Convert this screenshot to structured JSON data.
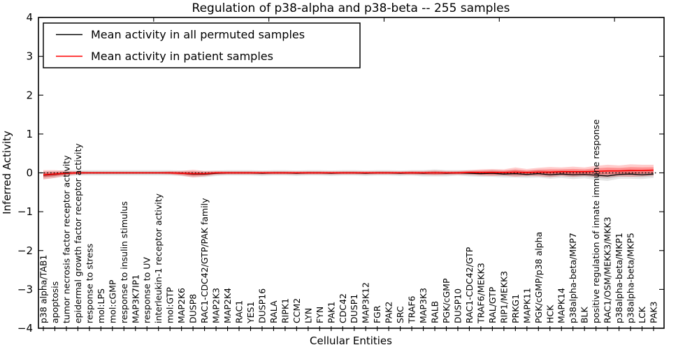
{
  "figure": {
    "title": "Regulation of p38-alpha and p38-beta -- 255 samples"
  },
  "chart_data": {
    "type": "line",
    "title": "Regulation of p38-alpha and p38-beta -- 255 samples",
    "xlabel": "Cellular Entities",
    "ylabel": "Inferred Activity",
    "ylim": [
      -4,
      4
    ],
    "yticks": [
      4,
      3,
      2,
      1,
      0,
      -1,
      -2,
      -3,
      -4
    ],
    "grid": false,
    "legend": {
      "position": "upper left",
      "entries": [
        {
          "label": "Mean activity in all permuted samples",
          "color": "#000000"
        },
        {
          "label": "Mean activity in patient samples",
          "color": "#ff0000"
        }
      ]
    },
    "reference_line": {
      "y": 0,
      "style": "dotted",
      "color": "#000000"
    },
    "categories": [
      "p38 alpha/TAB1",
      "apoptosis",
      "tumor necrosis factor receptor activity",
      "epidermal growth factor receptor activity",
      "response to stress",
      "mol:LPS",
      "mol:cGMP",
      "response to insulin stimulus",
      "MAP3K7IP1",
      "response to UV",
      "interleukin-1 receptor activity",
      "mol:GTP",
      "MAP2K6",
      "DUSP8",
      "RAC1-CDC42/GTP/PAK family",
      "MAP2K3",
      "MAP2K4",
      "RAC1",
      "YES1",
      "DUSP16",
      "RALA",
      "RIPK1",
      "CCM2",
      "LYN",
      "FYN",
      "PAK1",
      "CDC42",
      "DUSP1",
      "MAP3K12",
      "FGR",
      "PAK2",
      "SRC",
      "TRAF6",
      "MAP3K3",
      "RALB",
      "PGK/cGMP",
      "DUSP10",
      "RAC1-CDC42/GTP",
      "TRAF6/MEKK3",
      "RAL/GTP",
      "RIP1/MEKK3",
      "PRKG1",
      "MAPK11",
      "PGK/cGMP/p38 alpha",
      "HCK",
      "MAPK14",
      "p38alpha-beta/MKP7",
      "BLK",
      "positive regulation of innate immune response",
      "RAC1/OSM/MEKK3/MKK3",
      "p38alpha-beta/MKP1",
      "p38alpha-beta/MKP5",
      "LCK",
      "PAK3"
    ],
    "series": [
      {
        "name": "Mean activity in all permuted samples",
        "color": "#000000",
        "values": [
          -0.06,
          -0.04,
          -0.01,
          0,
          0,
          0,
          0,
          0,
          0,
          0,
          0,
          0,
          -0.01,
          -0.03,
          -0.03,
          -0.01,
          0,
          0,
          0,
          -0.01,
          0,
          0,
          -0.01,
          0,
          0,
          -0.01,
          0,
          0,
          -0.01,
          0,
          0,
          -0.01,
          0,
          -0.01,
          0,
          -0.01,
          0,
          -0.01,
          -0.02,
          -0.01,
          -0.03,
          -0.02,
          -0.04,
          -0.02,
          -0.05,
          -0.03,
          -0.05,
          -0.04,
          -0.06,
          -0.08,
          -0.04,
          -0.03,
          -0.05,
          -0.03
        ]
      },
      {
        "name": "Mean activity in patient samples",
        "color": "#ff0000",
        "values": [
          -0.05,
          -0.03,
          -0.01,
          0,
          0,
          0,
          0,
          0,
          0,
          0,
          0,
          0,
          -0.01,
          -0.02,
          -0.02,
          0,
          0,
          0,
          0,
          0,
          0,
          0,
          0,
          0,
          0,
          0,
          0,
          0,
          0,
          0,
          0,
          0,
          0,
          0,
          0,
          0,
          0,
          0.01,
          0.01,
          0.01,
          0.01,
          0.02,
          0.01,
          0.02,
          0.02,
          0.03,
          0.03,
          0.03,
          0.04,
          0.05,
          0.05,
          0.06,
          0.06,
          0.07
        ]
      }
    ],
    "bands": [
      {
        "name": "permuted-samples-std",
        "center_series": 0,
        "color": "#808080",
        "half_widths": [
          0.1,
          0.09,
          0.08,
          0.07,
          0.07,
          0.07,
          0.07,
          0.07,
          0.07,
          0.07,
          0.07,
          0.07,
          0.07,
          0.08,
          0.08,
          0.07,
          0.07,
          0.07,
          0.07,
          0.07,
          0.07,
          0.07,
          0.07,
          0.07,
          0.07,
          0.07,
          0.07,
          0.07,
          0.07,
          0.07,
          0.07,
          0.07,
          0.07,
          0.08,
          0.09,
          0.08,
          0.07,
          0.08,
          0.08,
          0.09,
          0.09,
          0.1,
          0.09,
          0.1,
          0.1,
          0.1,
          0.11,
          0.1,
          0.12,
          0.13,
          0.11,
          0.12,
          0.11,
          0.1
        ]
      },
      {
        "name": "patient-samples-std",
        "center_series": 1,
        "color": "#ff0000",
        "half_widths": [
          0.12,
          0.1,
          0.06,
          0.04,
          0.03,
          0.03,
          0.03,
          0.03,
          0.03,
          0.03,
          0.03,
          0.04,
          0.06,
          0.1,
          0.07,
          0.05,
          0.04,
          0.04,
          0.04,
          0.04,
          0.04,
          0.04,
          0.04,
          0.04,
          0.04,
          0.04,
          0.04,
          0.04,
          0.04,
          0.04,
          0.04,
          0.04,
          0.05,
          0.05,
          0.06,
          0.05,
          0.05,
          0.06,
          0.08,
          0.09,
          0.08,
          0.12,
          0.09,
          0.11,
          0.13,
          0.11,
          0.13,
          0.11,
          0.14,
          0.16,
          0.14,
          0.16,
          0.15,
          0.14
        ]
      }
    ]
  }
}
